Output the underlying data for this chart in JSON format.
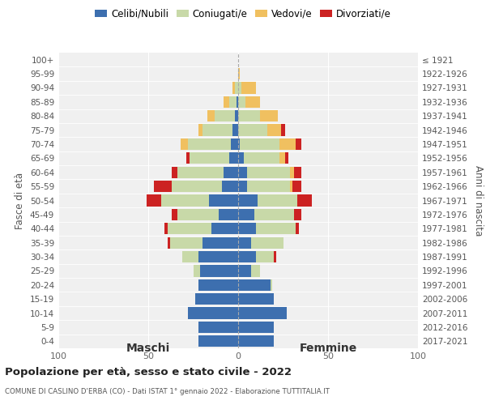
{
  "age_groups": [
    "100+",
    "95-99",
    "90-94",
    "85-89",
    "80-84",
    "75-79",
    "70-74",
    "65-69",
    "60-64",
    "55-59",
    "50-54",
    "45-49",
    "40-44",
    "35-39",
    "30-34",
    "25-29",
    "20-24",
    "15-19",
    "10-14",
    "5-9",
    "0-4"
  ],
  "birth_years": [
    "≤ 1921",
    "1922-1926",
    "1927-1931",
    "1932-1936",
    "1937-1941",
    "1942-1946",
    "1947-1951",
    "1952-1956",
    "1957-1961",
    "1962-1966",
    "1967-1971",
    "1972-1976",
    "1977-1981",
    "1982-1986",
    "1987-1991",
    "1992-1996",
    "1997-2001",
    "2002-2006",
    "2007-2011",
    "2012-2016",
    "2017-2021"
  ],
  "maschi": {
    "celibi": [
      0,
      0,
      0,
      1,
      2,
      3,
      4,
      5,
      8,
      9,
      16,
      11,
      15,
      20,
      22,
      21,
      22,
      24,
      28,
      22,
      22
    ],
    "coniugati": [
      0,
      0,
      2,
      4,
      11,
      17,
      24,
      22,
      26,
      28,
      27,
      23,
      24,
      18,
      9,
      4,
      0,
      0,
      0,
      0,
      0
    ],
    "vedovi": [
      0,
      0,
      1,
      3,
      4,
      2,
      4,
      0,
      0,
      0,
      0,
      0,
      0,
      0,
      0,
      0,
      0,
      0,
      0,
      0,
      0
    ],
    "divorziati": [
      0,
      0,
      0,
      0,
      0,
      0,
      0,
      2,
      3,
      10,
      8,
      3,
      2,
      1,
      0,
      0,
      0,
      0,
      0,
      0,
      0
    ]
  },
  "femmine": {
    "nubili": [
      0,
      0,
      0,
      0,
      0,
      0,
      1,
      3,
      5,
      5,
      11,
      9,
      10,
      7,
      10,
      7,
      18,
      20,
      27,
      20,
      20
    ],
    "coniugate": [
      0,
      0,
      2,
      4,
      12,
      16,
      22,
      20,
      24,
      24,
      22,
      22,
      22,
      18,
      10,
      5,
      1,
      0,
      0,
      0,
      0
    ],
    "vedove": [
      0,
      1,
      8,
      8,
      10,
      8,
      9,
      3,
      2,
      1,
      0,
      0,
      0,
      0,
      0,
      0,
      0,
      0,
      0,
      0,
      0
    ],
    "divorziate": [
      0,
      0,
      0,
      0,
      0,
      2,
      3,
      2,
      4,
      5,
      8,
      4,
      2,
      0,
      1,
      0,
      0,
      0,
      0,
      0,
      0
    ]
  },
  "colors": {
    "celibi": "#3d6faf",
    "coniugati": "#c8d9a8",
    "vedovi": "#f0c060",
    "divorziati": "#cc2222"
  },
  "title1": "Popolazione per età, sesso e stato civile - 2022",
  "title2": "COMUNE DI CASLINO D'ERBA (CO) - Dati ISTAT 1° gennaio 2022 - Elaborazione TUTTITALIA.IT",
  "xlabel_left": "Maschi",
  "xlabel_right": "Femmine",
  "ylabel_left": "Fasce di età",
  "ylabel_right": "Anni di nascita",
  "xlim": 100,
  "legend_labels": [
    "Celibi/Nubili",
    "Coniugati/e",
    "Vedovi/e",
    "Divorziati/e"
  ],
  "legend_colors": [
    "#3d6faf",
    "#c8d9a8",
    "#f0c060",
    "#cc2222"
  ],
  "bg_color": "#f0f0f0"
}
